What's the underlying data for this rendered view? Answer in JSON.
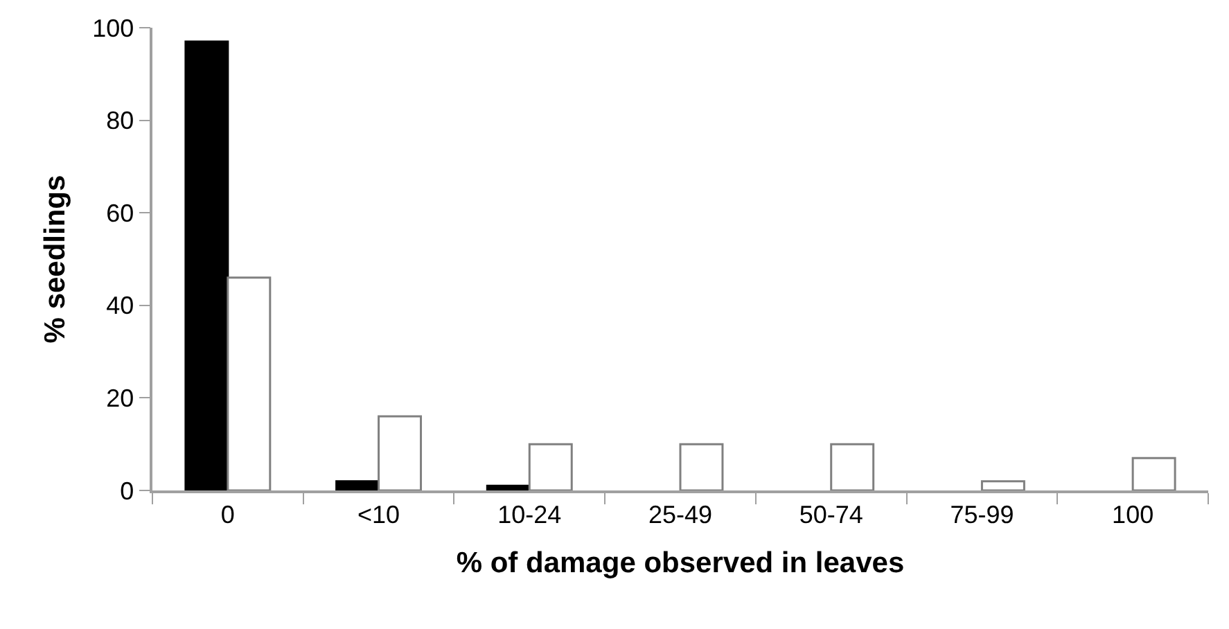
{
  "chart_data": {
    "type": "bar",
    "xlabel": "% of damage observed in leaves",
    "ylabel": "% seedlings",
    "categories": [
      "0",
      "<10",
      "10-24",
      "25-49",
      "50-74",
      "75-99",
      "100"
    ],
    "series": [
      {
        "color": "#000000",
        "values": [
          97,
          2,
          1,
          null,
          null,
          null,
          null
        ]
      },
      {
        "color": "#ffffff",
        "values": [
          46,
          16,
          10,
          10,
          10,
          2,
          7
        ]
      }
    ],
    "ylim": [
      0,
      100
    ],
    "yticks": [
      0,
      20,
      40,
      60,
      80,
      100
    ],
    "grid": false
  }
}
